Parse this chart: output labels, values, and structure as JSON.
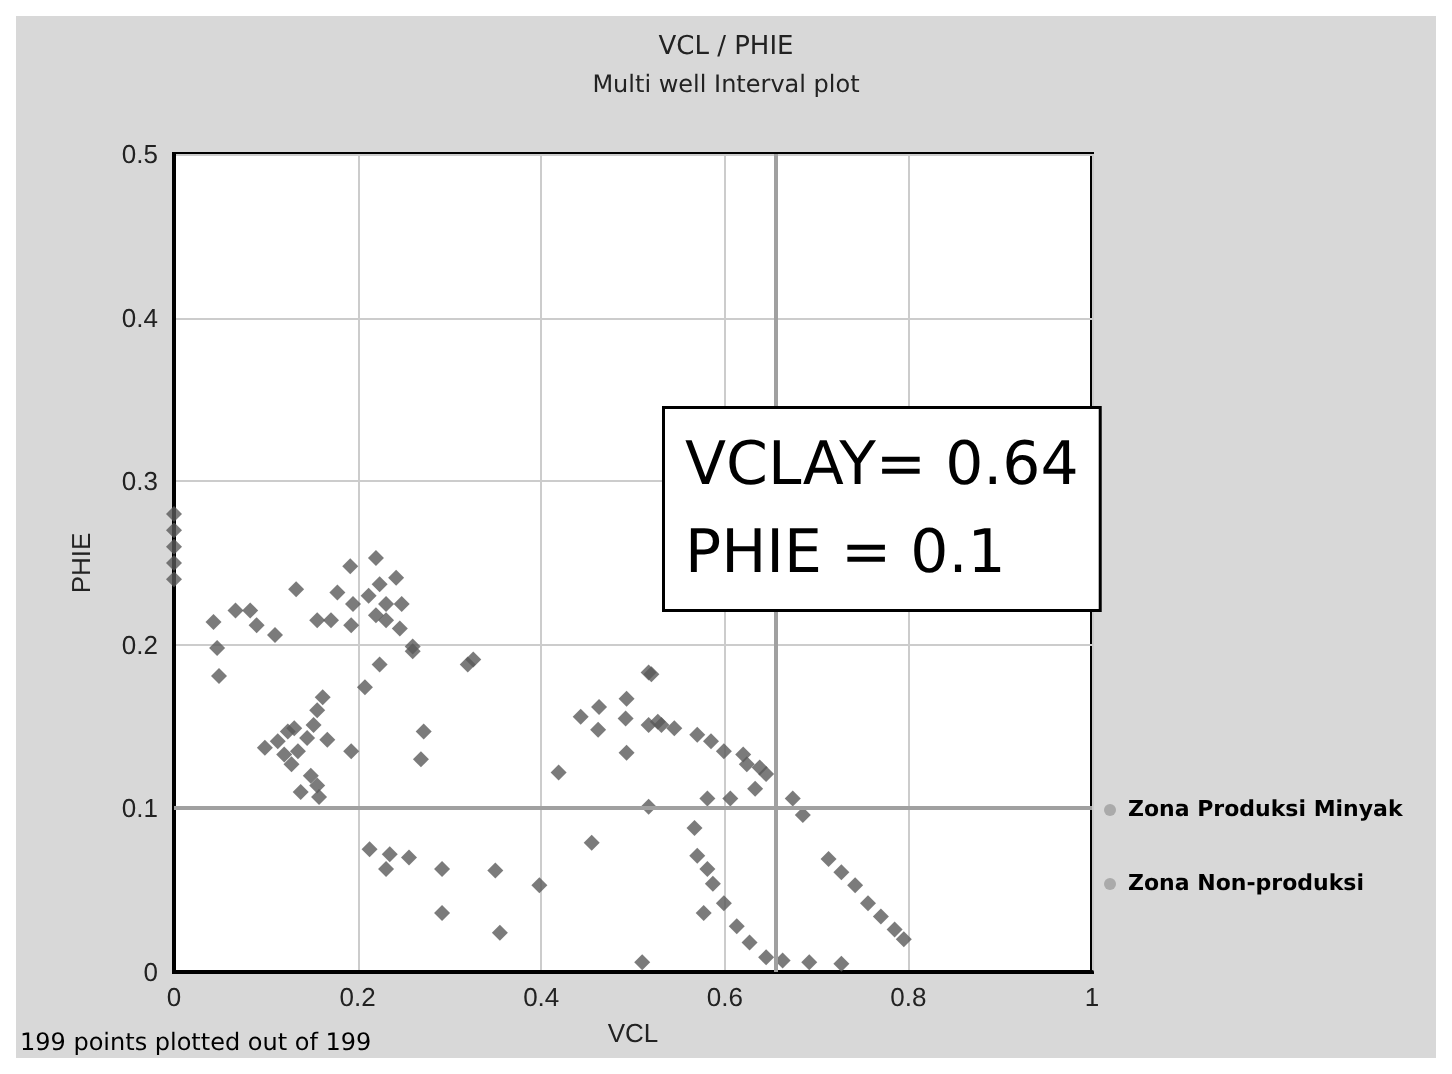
{
  "chart_data": {
    "type": "scatter",
    "title": "VCL / PHIE",
    "subtitle": "Multi well Interval plot",
    "xlabel": "VCL",
    "ylabel": "PHIE",
    "xlim": [
      0,
      1
    ],
    "ylim": [
      0,
      0.5
    ],
    "xticks": [
      0,
      0.2,
      0.4,
      0.6,
      0.8,
      1
    ],
    "yticks": [
      0,
      0.1,
      0.2,
      0.3,
      0.4,
      0.5
    ],
    "grid": true,
    "marker": "diamond",
    "annotations": [
      "VCLAY= 0.64\nPHIE = 0.1",
      "Zona Produksi Minyak",
      "Zona Non-produksi",
      "199 points plotted out of 199"
    ],
    "ref_lines": [
      {
        "axis": "x",
        "value": 0.655,
        "color": "#a0a0a0"
      },
      {
        "axis": "y",
        "value": 0.1,
        "color": "#a0a0a0"
      }
    ],
    "series": [
      {
        "color": "#5a5a5a",
        "x": [
          0,
          0,
          0,
          0,
          0,
          0.043,
          0.047,
          0.049,
          0.067,
          0.083,
          0.09,
          0.11,
          0.133,
          0.156,
          0.171,
          0.192,
          0.178,
          0.195,
          0.193,
          0.22,
          0.212,
          0.224,
          0.242,
          0.231,
          0.22,
          0.231,
          0.248,
          0.246,
          0.26,
          0.26,
          0.224,
          0.208,
          0.32,
          0.326,
          0.272,
          0.269,
          0.193,
          0.099,
          0.113,
          0.124,
          0.135,
          0.145,
          0.152,
          0.156,
          0.162,
          0.167,
          0.12,
          0.128,
          0.138,
          0.149,
          0.156,
          0.158,
          0.131,
          0.213,
          0.231,
          0.235,
          0.256,
          0.292,
          0.292,
          0.35,
          0.355,
          0.398,
          0.419,
          0.455,
          0.443,
          0.463,
          0.462,
          0.493,
          0.492,
          0.493,
          0.517,
          0.517,
          0.531,
          0.517,
          0.51,
          0.527,
          0.545,
          0.57,
          0.585,
          0.599,
          0.62,
          0.624,
          0.638,
          0.645,
          0.633,
          0.52,
          0.581,
          0.606,
          0.674,
          0.685,
          0.567,
          0.57,
          0.581,
          0.587,
          0.577,
          0.599,
          0.613,
          0.627,
          0.645,
          0.663,
          0.692,
          0.727,
          0.713,
          0.727,
          0.742,
          0.756,
          0.77,
          0.785,
          0.795
        ],
        "values": [
          0.28,
          0.27,
          0.26,
          0.25,
          0.24,
          0.214,
          0.198,
          0.181,
          0.221,
          0.221,
          0.212,
          0.206,
          0.234,
          0.215,
          0.215,
          0.248,
          0.232,
          0.225,
          0.212,
          0.253,
          0.23,
          0.237,
          0.241,
          0.225,
          0.218,
          0.215,
          0.225,
          0.21,
          0.199,
          0.196,
          0.188,
          0.174,
          0.188,
          0.191,
          0.147,
          0.13,
          0.135,
          0.137,
          0.141,
          0.147,
          0.135,
          0.143,
          0.151,
          0.16,
          0.168,
          0.142,
          0.133,
          0.127,
          0.11,
          0.12,
          0.114,
          0.107,
          0.149,
          0.075,
          0.063,
          0.072,
          0.07,
          0.063,
          0.036,
          0.062,
          0.024,
          0.053,
          0.122,
          0.079,
          0.156,
          0.162,
          0.148,
          0.167,
          0.155,
          0.134,
          0.183,
          0.151,
          0.151,
          0.101,
          0.006,
          0.153,
          0.149,
          0.145,
          0.141,
          0.135,
          0.133,
          0.127,
          0.125,
          0.121,
          0.112,
          0.182,
          0.106,
          0.106,
          0.106,
          0.096,
          0.088,
          0.071,
          0.063,
          0.054,
          0.036,
          0.042,
          0.028,
          0.018,
          0.009,
          0.007,
          0.006,
          0.005,
          0.069,
          0.061,
          0.053,
          0.042,
          0.034,
          0.026,
          0.02
        ]
      }
    ]
  }
}
